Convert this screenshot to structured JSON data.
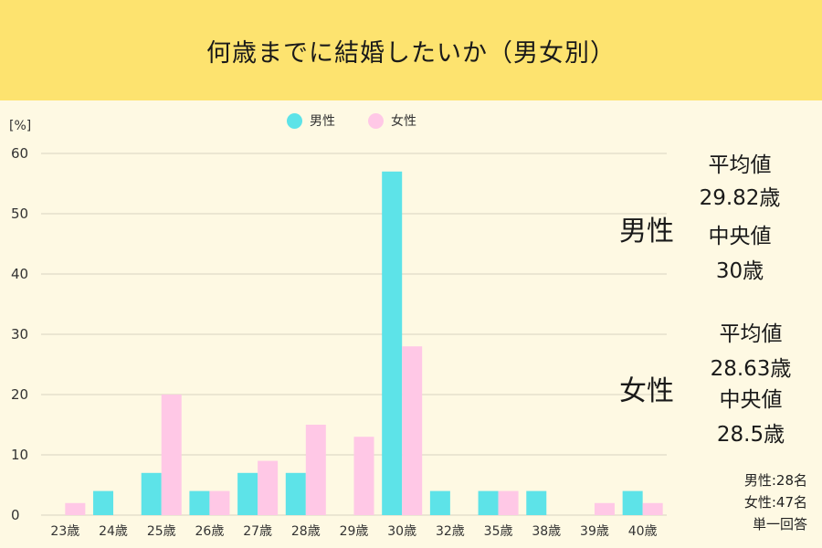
{
  "title": "何歳までに結婚したいか（男女別）",
  "colors": {
    "male": "#5de3e8",
    "female": "#ffc8e6",
    "header_bg": "#fde36f",
    "page_bg": "#fef9e3",
    "grid": "#d8d3c0"
  },
  "stats": {
    "male": {
      "label": "男性",
      "mean_label": "平均値",
      "mean_value": "29.82歳",
      "median_label": "中央値",
      "median_value": "30歳"
    },
    "female": {
      "label": "女性",
      "mean_label": "平均値",
      "mean_value": "28.63歳",
      "median_label": "中央値",
      "median_value": "28.5歳"
    }
  },
  "footnote": {
    "male_n": "男性:28名",
    "female_n": "女性:47名",
    "answer_type": "単一回答"
  },
  "chart_data": {
    "type": "bar",
    "title": "何歳までに結婚したいか（男女別）",
    "ylabel": "[%]",
    "ylim": [
      0,
      60
    ],
    "yticks": [
      0,
      10,
      20,
      30,
      40,
      50,
      60
    ],
    "grid": true,
    "legend_position": "top-center",
    "categories": [
      "23歳",
      "24歳",
      "25歳",
      "26歳",
      "27歳",
      "28歳",
      "29歳",
      "30歳",
      "32歳",
      "35歳",
      "38歳",
      "39歳",
      "40歳"
    ],
    "series": [
      {
        "name": "男性",
        "color": "#5de3e8",
        "values": [
          0,
          4,
          7,
          4,
          7,
          7,
          0,
          57,
          4,
          4,
          4,
          0,
          4
        ]
      },
      {
        "name": "女性",
        "color": "#ffc8e6",
        "values": [
          2,
          0,
          20,
          4,
          9,
          15,
          13,
          28,
          0,
          4,
          0,
          2,
          2
        ]
      }
    ]
  }
}
